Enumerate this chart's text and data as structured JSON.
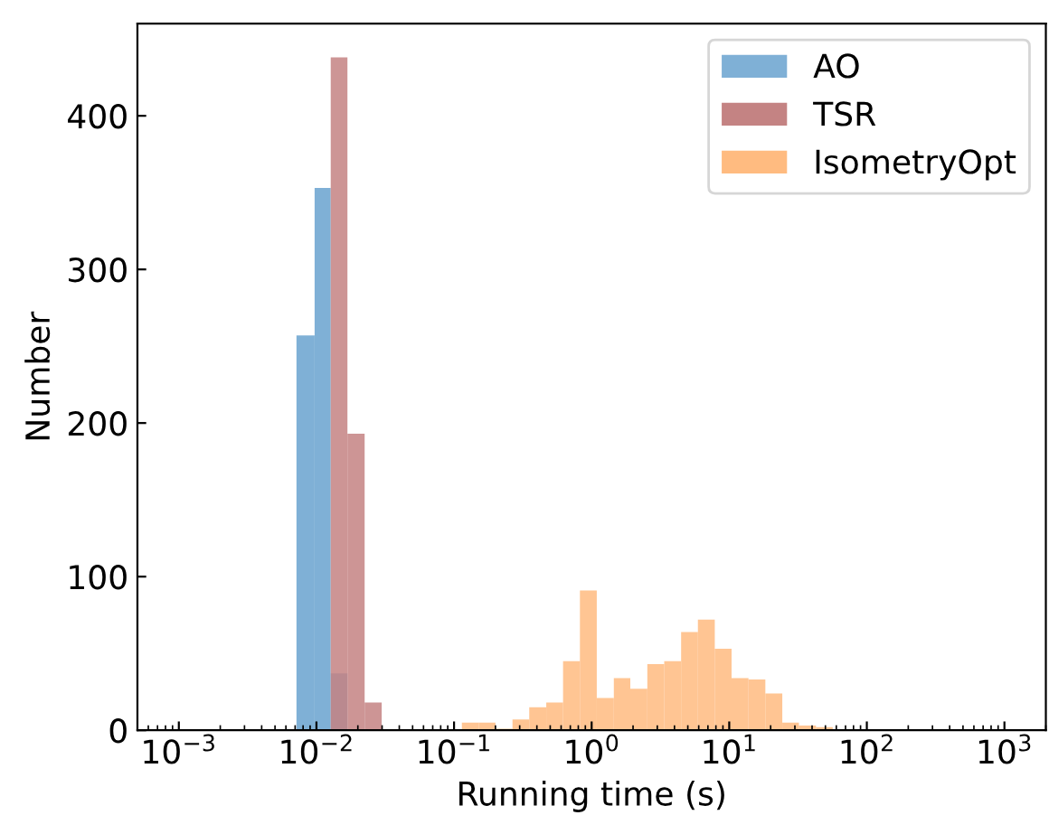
{
  "chart_data": {
    "type": "histogram",
    "xlabel": "Running time (s)",
    "ylabel": "Number",
    "log": "x",
    "legend": "top right",
    "grid": false,
    "xlim": [
      0.0005,
      2000
    ],
    "ylim": [
      0,
      460
    ],
    "xticks": [
      {
        "value": 0.001,
        "label": "10$^{−3}$"
      },
      {
        "value": 0.01,
        "label": "10$^{−2}$"
      },
      {
        "value": 0.1,
        "label": "10$^{−1}$"
      },
      {
        "value": 1,
        "label": "10$^{0}$"
      },
      {
        "value": 10,
        "label": "10$^{1}$"
      },
      {
        "value": 100,
        "label": "10$^{2}$"
      },
      {
        "value": 1000,
        "label": "10$^{3}$"
      }
    ],
    "yticks": [
      0,
      100,
      200,
      300,
      400
    ],
    "bins": [
      0.00716,
      0.0097,
      0.0127,
      0.0168,
      0.0224,
      0.0298,
      0.114,
      0.151,
      0.2,
      0.266,
      0.352,
      0.468,
      0.62,
      0.822,
      1.09,
      1.45,
      1.91,
      2.54,
      3.37,
      4.47,
      5.92,
      7.85,
      10.4,
      13.8,
      18.3,
      24.3,
      32.1,
      42.7,
      56.5
    ],
    "series": [
      {
        "name": "AO",
        "color": "#7fb0d6",
        "values": [
          257,
          353,
          37,
          null,
          null,
          null,
          null,
          null,
          null,
          null,
          null,
          null,
          null,
          null,
          null,
          null,
          null,
          null,
          null,
          null,
          null,
          null,
          null,
          null,
          null,
          null,
          null,
          null
        ]
      },
      {
        "name": "TSR",
        "color": "#c48383",
        "values": [
          null,
          null,
          438,
          193,
          18,
          null,
          null,
          null,
          null,
          null,
          null,
          null,
          null,
          null,
          null,
          null,
          null,
          null,
          null,
          null,
          null,
          null,
          null,
          null,
          null,
          null,
          null,
          null
        ]
      },
      {
        "name": "IsometryOpt",
        "color": "#ffbb80",
        "values": [
          null,
          null,
          null,
          null,
          null,
          null,
          5,
          5,
          1,
          7,
          15,
          18,
          45,
          91,
          21,
          34,
          27,
          43,
          45,
          64,
          72,
          53,
          34,
          33,
          24,
          5,
          3,
          2
        ]
      }
    ]
  }
}
